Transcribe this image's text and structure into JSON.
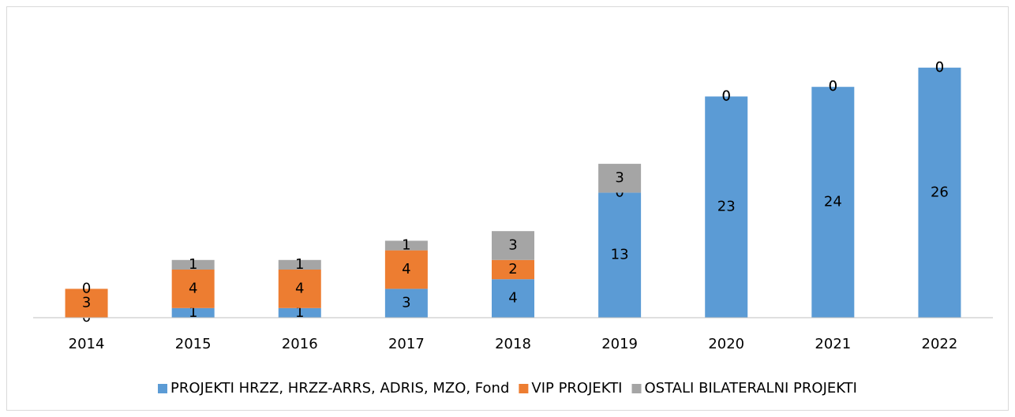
{
  "chart_data": {
    "type": "stacked-bar",
    "categories": [
      "2014",
      "2015",
      "2016",
      "2017",
      "2018",
      "2019",
      "2020",
      "2021",
      "2022"
    ],
    "series": [
      {
        "name": "PROJEKTI HRZZ, HRZZ-ARRS, ADRIS, MZO, Fond",
        "color": "#5b9bd5",
        "values": [
          0,
          1,
          1,
          3,
          4,
          13,
          23,
          24,
          26
        ]
      },
      {
        "name": "VIP PROJEKTI",
        "color": "#ed7d31",
        "values": [
          3,
          4,
          4,
          4,
          2,
          0,
          0,
          0,
          0
        ]
      },
      {
        "name": "OSTALI BILATERALNI PROJEKTI",
        "color": "#a5a5a5",
        "values": [
          0,
          1,
          1,
          1,
          3,
          3,
          0,
          0,
          0
        ]
      }
    ],
    "ylim": [
      0,
      30
    ],
    "legend": "bottom"
  }
}
